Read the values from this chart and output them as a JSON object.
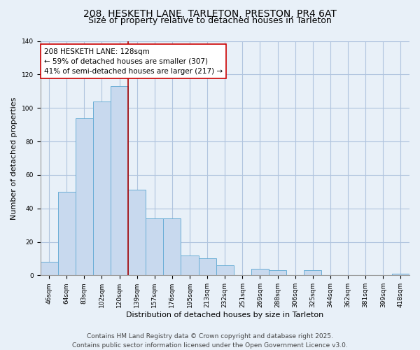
{
  "title": "208, HESKETH LANE, TARLETON, PRESTON, PR4 6AT",
  "subtitle": "Size of property relative to detached houses in Tarleton",
  "xlabel": "Distribution of detached houses by size in Tarleton",
  "ylabel": "Number of detached properties",
  "bar_color": "#c8d9ee",
  "bar_edge_color": "#6aaed6",
  "background_color": "#e8f0f8",
  "grid_color": "#b0c4de",
  "categories": [
    "46sqm",
    "64sqm",
    "83sqm",
    "102sqm",
    "120sqm",
    "139sqm",
    "157sqm",
    "176sqm",
    "195sqm",
    "213sqm",
    "232sqm",
    "251sqm",
    "269sqm",
    "288sqm",
    "306sqm",
    "325sqm",
    "344sqm",
    "362sqm",
    "381sqm",
    "399sqm",
    "418sqm"
  ],
  "values": [
    8,
    50,
    94,
    104,
    113,
    51,
    34,
    34,
    12,
    10,
    6,
    0,
    4,
    3,
    0,
    3,
    0,
    0,
    0,
    0,
    1
  ],
  "property_line_x": 4.5,
  "property_line_color": "#aa0000",
  "annotation_text": "208 HESKETH LANE: 128sqm\n← 59% of detached houses are smaller (307)\n41% of semi-detached houses are larger (217) →",
  "annotation_box_color": "#ffffff",
  "annotation_box_edge": "#cc0000",
  "ylim": [
    0,
    140
  ],
  "yticks": [
    0,
    20,
    40,
    60,
    80,
    100,
    120,
    140
  ],
  "footer_line1": "Contains HM Land Registry data © Crown copyright and database right 2025.",
  "footer_line2": "Contains public sector information licensed under the Open Government Licence v3.0.",
  "title_fontsize": 10,
  "subtitle_fontsize": 9,
  "annotation_fontsize": 7.5,
  "footer_fontsize": 6.5,
  "ylabel_fontsize": 8,
  "xlabel_fontsize": 8,
  "tick_fontsize": 6.5
}
